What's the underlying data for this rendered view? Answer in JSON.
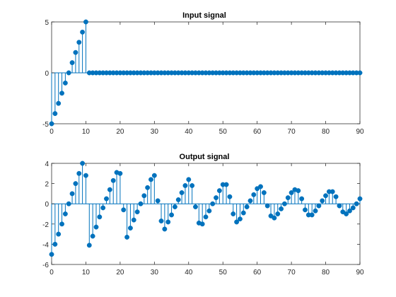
{
  "colors": {
    "stem": "#0072BD",
    "axis": "#262626",
    "background": "#ffffff"
  },
  "chart_data": [
    {
      "type": "stem",
      "title": "Input signal",
      "xlim": [
        0,
        90
      ],
      "ylim": [
        -5,
        5
      ],
      "xticks": [
        0,
        10,
        20,
        30,
        40,
        50,
        60,
        70,
        80,
        90
      ],
      "yticks": [
        -5,
        0,
        5
      ],
      "x": [
        0,
        1,
        2,
        3,
        4,
        5,
        6,
        7,
        8,
        9,
        10,
        11,
        12,
        13,
        14,
        15,
        16,
        17,
        18,
        19,
        20,
        21,
        22,
        23,
        24,
        25,
        26,
        27,
        28,
        29,
        30,
        31,
        32,
        33,
        34,
        35,
        36,
        37,
        38,
        39,
        40,
        41,
        42,
        43,
        44,
        45,
        46,
        47,
        48,
        49,
        50,
        51,
        52,
        53,
        54,
        55,
        56,
        57,
        58,
        59,
        60,
        61,
        62,
        63,
        64,
        65,
        66,
        67,
        68,
        69,
        70,
        71,
        72,
        73,
        74,
        75,
        76,
        77,
        78,
        79,
        80,
        81,
        82,
        83,
        84,
        85,
        86,
        87,
        88,
        89,
        90
      ],
      "y": [
        -5,
        -4,
        -3,
        -2,
        -1,
        0,
        1,
        2,
        3,
        4,
        5,
        0,
        0,
        0,
        0,
        0,
        0,
        0,
        0,
        0,
        0,
        0,
        0,
        0,
        0,
        0,
        0,
        0,
        0,
        0,
        0,
        0,
        0,
        0,
        0,
        0,
        0,
        0,
        0,
        0,
        0,
        0,
        0,
        0,
        0,
        0,
        0,
        0,
        0,
        0,
        0,
        0,
        0,
        0,
        0,
        0,
        0,
        0,
        0,
        0,
        0,
        0,
        0,
        0,
        0,
        0,
        0,
        0,
        0,
        0,
        0,
        0,
        0,
        0,
        0,
        0,
        0,
        0,
        0,
        0,
        0,
        0,
        0,
        0,
        0,
        0,
        0,
        0,
        0,
        0,
        0
      ],
      "grid": false
    },
    {
      "type": "stem",
      "title": "Output signal",
      "xlim": [
        0,
        90
      ],
      "ylim": [
        -6,
        4
      ],
      "xticks": [
        0,
        10,
        20,
        30,
        40,
        50,
        60,
        70,
        80,
        90
      ],
      "yticks": [
        -6,
        -4,
        -2,
        0,
        2,
        4
      ],
      "x": [
        0,
        1,
        2,
        3,
        4,
        5,
        6,
        7,
        8,
        9,
        10,
        11,
        12,
        13,
        14,
        15,
        16,
        17,
        18,
        19,
        20,
        21,
        22,
        23,
        24,
        25,
        26,
        27,
        28,
        29,
        30,
        31,
        32,
        33,
        34,
        35,
        36,
        37,
        38,
        39,
        40,
        41,
        42,
        43,
        44,
        45,
        46,
        47,
        48,
        49,
        50,
        51,
        52,
        53,
        54,
        55,
        56,
        57,
        58,
        59,
        60,
        61,
        62,
        63,
        64,
        65,
        66,
        67,
        68,
        69,
        70,
        71,
        72,
        73,
        74,
        75,
        76,
        77,
        78,
        79,
        80,
        81,
        82,
        83,
        84,
        85,
        86,
        87,
        88,
        89,
        90
      ],
      "y": [
        -5,
        -4,
        -3,
        -2,
        -1,
        0,
        1,
        2,
        3,
        4,
        2.8,
        -4.1,
        -3.2,
        -2.3,
        -1.3,
        -0.4,
        0.5,
        1.4,
        2.3,
        3.1,
        3.0,
        -0.6,
        -3.3,
        -2.4,
        -1.6,
        -0.8,
        0.0,
        0.8,
        1.6,
        2.4,
        2.8,
        0.3,
        -1.7,
        -2.5,
        -1.8,
        -1.1,
        -0.3,
        0.4,
        1.1,
        1.8,
        2.4,
        1.8,
        -0.3,
        -1.9,
        -2.0,
        -1.3,
        -0.7,
        0.0,
        0.6,
        1.3,
        1.9,
        1.9,
        0.7,
        -1.0,
        -1.8,
        -1.5,
        -0.9,
        -0.3,
        0.3,
        0.9,
        1.5,
        1.7,
        1.1,
        -0.2,
        -1.2,
        -1.4,
        -1.0,
        -0.5,
        0.0,
        0.6,
        1.1,
        1.4,
        1.3,
        0.5,
        -0.6,
        -1.1,
        -1.1,
        -0.7,
        -0.2,
        0.3,
        0.8,
        1.2,
        1.2,
        0.7,
        -0.2,
        -0.8,
        -1.0,
        -0.7,
        -0.4,
        0.0,
        0.5
      ],
      "grid": false
    }
  ]
}
